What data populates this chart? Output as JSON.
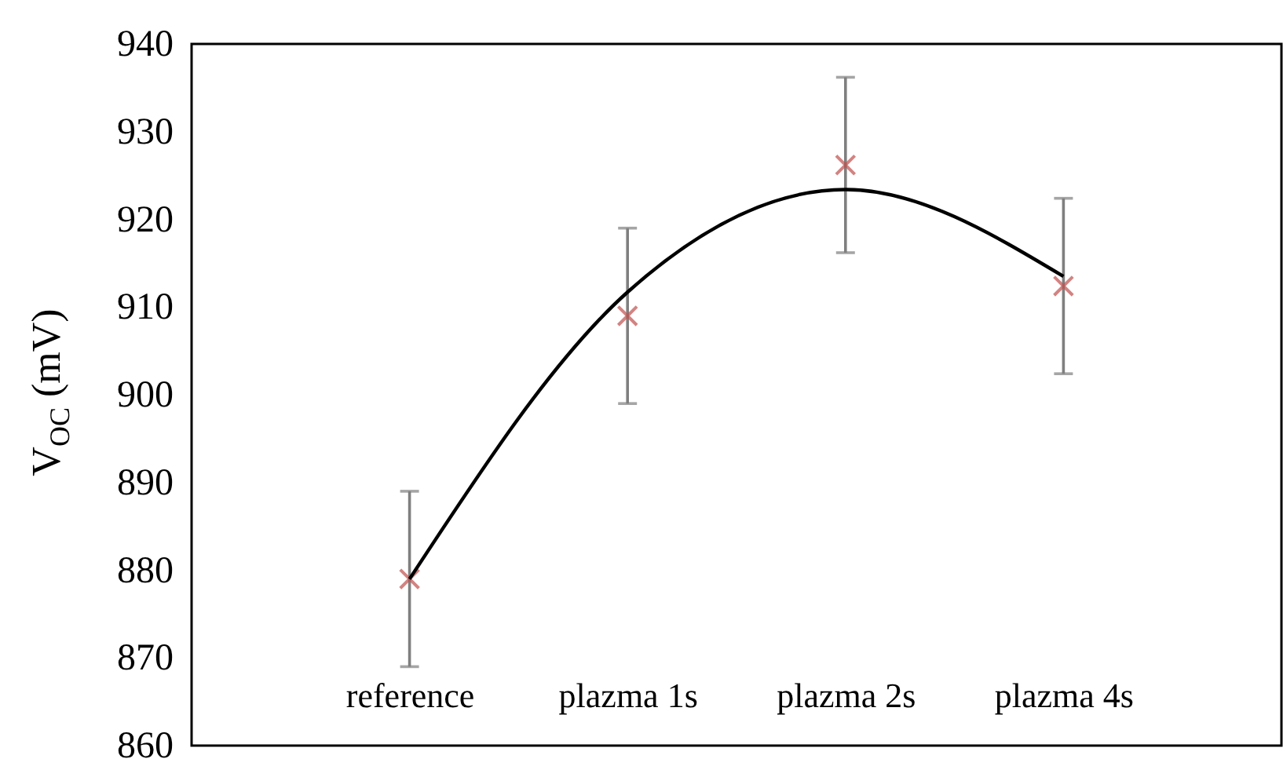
{
  "chart_data": {
    "type": "scatter",
    "ylabel": "V$_{OC}$ (mV)",
    "categories": [
      "reference",
      "plazma 1s",
      "plazma 2s",
      "plazma 4s"
    ],
    "series": [
      {
        "color": "#c0504d",
        "marker": "cross",
        "values": [
          879,
          909,
          926.2,
          912.4
        ],
        "errors": [
          10,
          10,
          10,
          10
        ]
      },
      {
        "type": "line",
        "color": "#000000",
        "values": [
          879,
          911.7,
          923.4,
          913.5
        ]
      }
    ],
    "ylim": [
      860,
      940
    ],
    "yticks": [
      860,
      870,
      880,
      890,
      900,
      910,
      920,
      930,
      940
    ],
    "grid": false
  }
}
